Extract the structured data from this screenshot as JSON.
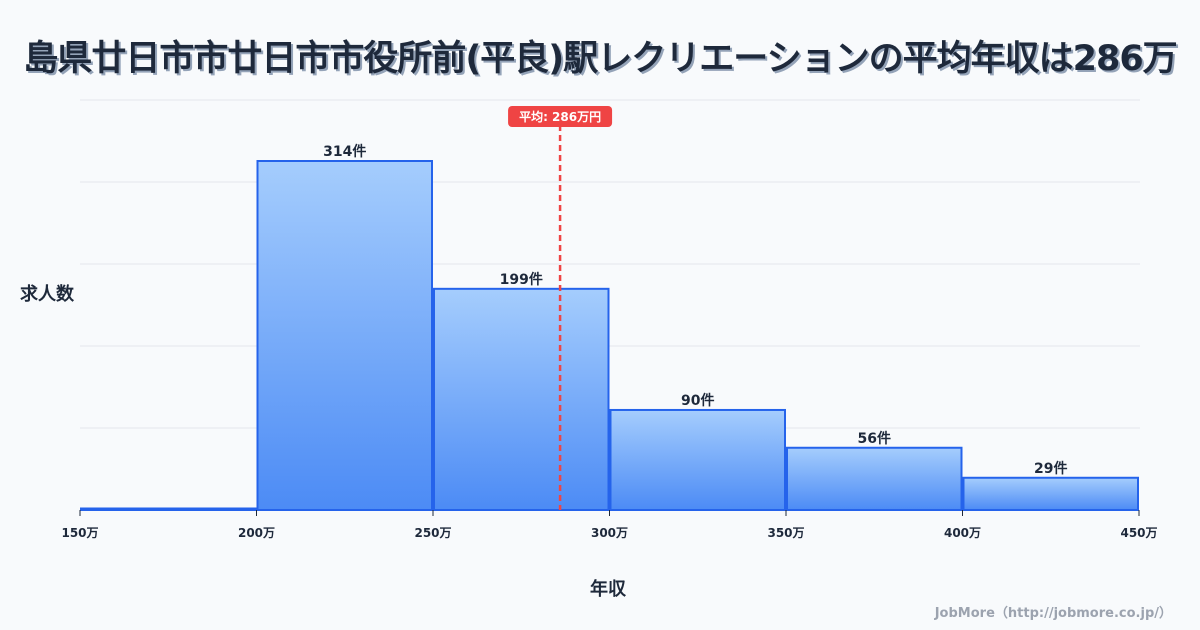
{
  "title": "島県廿日市市廿日市市役所前(平良)駅レクリエーションの平均年収は286万",
  "y_axis_label": "求人数",
  "x_axis_label": "年収",
  "footer": "JobMore（http://jobmore.co.jp/）",
  "mean_badge": "平均: 286万円",
  "colors": {
    "bar_top": "#a5cdfd",
    "bar_bottom": "#4c8bf5",
    "bar_stroke": "#2563eb",
    "mean_line": "#ef4444",
    "text": "#1e293b"
  },
  "chart_data": {
    "type": "bar",
    "title": "島県廿日市市廿日市市役所前(平良)駅レクリエーションの平均年収は286万",
    "xlabel": "年収",
    "ylabel": "求人数",
    "categories": [
      "150万-200万",
      "200万-250万",
      "250万-300万",
      "300万-350万",
      "350万-400万",
      "400万-450万"
    ],
    "bin_edges": [
      150,
      200,
      250,
      300,
      350,
      400,
      450
    ],
    "values": [
      0,
      314,
      199,
      90,
      56,
      29
    ],
    "value_labels": [
      "",
      "314件",
      "199件",
      "90件",
      "56件",
      "29件"
    ],
    "x_tick_labels": [
      "150万",
      "200万",
      "250万",
      "300万",
      "350万",
      "400万",
      "450万"
    ],
    "xlim": [
      150,
      450
    ],
    "ylim": [
      0,
      370
    ],
    "grid": true,
    "mean": 286,
    "mean_label": "平均: 286万円"
  }
}
